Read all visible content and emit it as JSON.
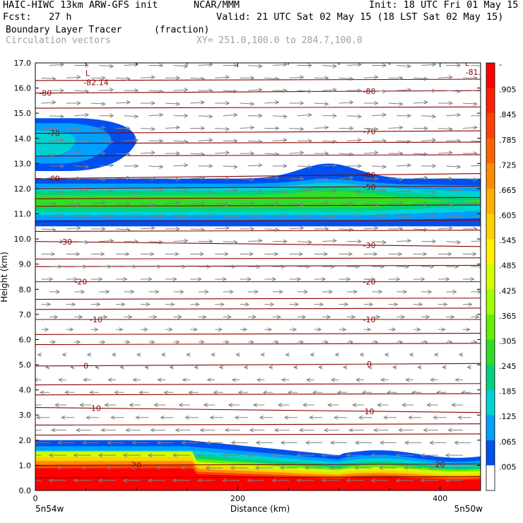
{
  "header": {
    "left_title": "HAIC-HIWC 13km ARW-GFS init",
    "center_title": "NCAR/MMM",
    "init": "Init: 18 UTC Fri 01 May 15",
    "fcst": "Fcst:   27 h",
    "valid": "Valid: 21 UTC Sat 02 May 15 (18 LST Sat 02 May 15)",
    "field_name": "Boundary Layer Tracer",
    "field_unit": "(fraction)",
    "vector_label": "Circulation vectors",
    "xy_label": "XY= 251.0,100.0 to 284.7,100.0"
  },
  "chart_data": {
    "type": "heatmap",
    "title": "Boundary Layer Tracer (fraction)",
    "xlabel": "Distance (km)",
    "ylabel": "Height (km)",
    "xlim": [
      0,
      440
    ],
    "ylim": [
      0,
      17
    ],
    "x_ticks": [
      {
        "value": 0,
        "label": "0"
      },
      {
        "value": 200,
        "label": "200"
      },
      {
        "value": 400,
        "label": "400"
      }
    ],
    "x_end_labels": {
      "left": "5n54w",
      "right": "5n50w"
    },
    "y_ticks": [
      "0.0",
      "1.0",
      "2.0",
      "3.0",
      "4.0",
      "5.0",
      "6.0",
      "7.0",
      "8.0",
      "9.0",
      "10.0",
      "11.0",
      "12.0",
      "13.0",
      "14.0",
      "15.0",
      "16.0",
      "17.0"
    ],
    "colorbar": {
      "labels": [
        "-",
        ".905",
        ".845",
        ".785",
        ".725",
        ".665",
        ".605",
        ".545",
        ".485",
        ".425",
        ".365",
        ".305",
        ".245",
        ".185",
        ".125",
        ".065",
        ".005"
      ],
      "colors": [
        "#ff0000",
        "#ff2000",
        "#ff4000",
        "#ff6400",
        "#ff8c00",
        "#ffb000",
        "#ffd200",
        "#fff000",
        "#d2ff00",
        "#a0ff00",
        "#64f000",
        "#32dc28",
        "#00d27d",
        "#00d2d2",
        "#00a0ff",
        "#0050f0",
        "#ffffff"
      ]
    },
    "temperature_contours": [
      {
        "label": "-80",
        "y_start": 15.8,
        "y_end": 15.9,
        "label_x": [
          10,
          330
        ]
      },
      {
        "label": "-70",
        "y_start": 14.2,
        "y_end": 14.3,
        "label_x": [
          18,
          330
        ]
      },
      {
        "label": "-60",
        "y_start": 12.4,
        "y_end": 12.6,
        "label_x": [
          18,
          330
        ]
      },
      {
        "label": "-50",
        "y_start": 12.0,
        "y_end": 12.1,
        "label_x": [
          330
        ]
      },
      {
        "label": "-30",
        "y_start": 9.9,
        "y_end": 9.7,
        "label_x": [
          30,
          330
        ]
      },
      {
        "label": "-20",
        "y_start": 8.3,
        "y_end": 8.3,
        "label_x": [
          45,
          330
        ]
      },
      {
        "label": "-10",
        "y_start": 6.8,
        "y_end": 6.8,
        "label_x": [
          60,
          330
        ]
      },
      {
        "label": "0",
        "y_start": 4.95,
        "y_end": 5.05,
        "label_x": [
          50,
          330
        ]
      },
      {
        "label": "10",
        "y_start": 3.3,
        "y_end": 3.1,
        "label_x": [
          60,
          330
        ]
      },
      {
        "label": "20",
        "y_start": 1.0,
        "y_end": 1.05,
        "label_x": [
          100,
          400
        ]
      }
    ],
    "other_contour_levels_km": [
      16.3,
      15.2,
      13.8,
      13.3,
      11.6,
      11.3,
      10.7,
      10.3,
      9.2,
      8.9,
      7.6,
      7.2,
      6.2,
      5.8,
      4.2,
      3.8,
      2.6,
      2.2,
      0.5
    ],
    "lows": [
      {
        "marker": "L",
        "value": "-82.14",
        "x": 60,
        "y": 16.2
      },
      {
        "marker": "L",
        "value": "-81.1",
        "x": 435,
        "y": 16.6
      }
    ],
    "tracer_regions": [
      {
        "name": "upper-left plume",
        "x_range": [
          0,
          100
        ],
        "y_range": [
          12.7,
          14.8
        ],
        "peak": 0.3
      },
      {
        "name": "upper band",
        "x_range": [
          0,
          440
        ],
        "y_range": [
          10.5,
          12.4
        ],
        "peak": 0.25
      },
      {
        "name": "boundary layer",
        "x_range": [
          0,
          440
        ],
        "y_range": [
          0,
          2.0
        ],
        "peak": 0.95
      }
    ]
  }
}
